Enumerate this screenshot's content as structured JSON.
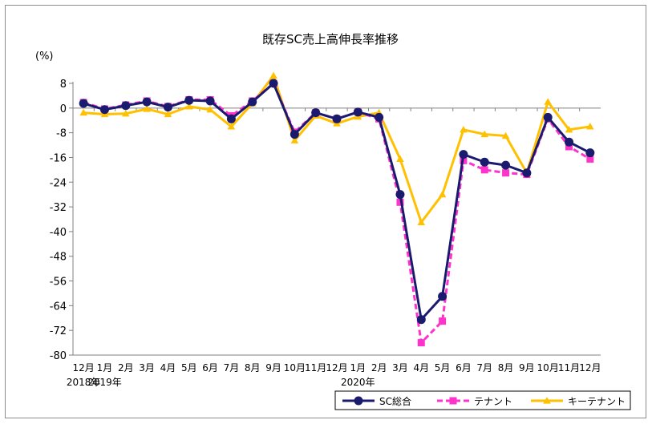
{
  "chart_data": {
    "type": "line",
    "title": "既存SC売上高伸長率推移",
    "ylabel": "(%)",
    "xlabel": "",
    "ylim": [
      -80,
      8
    ],
    "yticks": [
      8,
      0,
      -8,
      -16,
      -24,
      -32,
      -40,
      -48,
      -56,
      -64,
      -72,
      -80
    ],
    "grid": false,
    "legend_position": "bottom-right",
    "categories": [
      "12月",
      "1月",
      "2月",
      "3月",
      "4月",
      "5月",
      "6月",
      "7月",
      "8月",
      "9月",
      "10月",
      "11月",
      "12月",
      "1月",
      "2月",
      "3月",
      "4月",
      "5月",
      "6月",
      "7月",
      "8月",
      "9月",
      "10月",
      "11月",
      "12月"
    ],
    "year_labels": [
      {
        "index": 0,
        "text": "2018年"
      },
      {
        "index": 1,
        "text": "2019年"
      },
      {
        "index": 13,
        "text": "2020年"
      }
    ],
    "series": [
      {
        "name": "SC総合",
        "color": "#1a1a6e",
        "dash": false,
        "marker": "circle",
        "values": [
          1.5,
          -0.5,
          0.8,
          2.0,
          0.3,
          2.5,
          2.3,
          -3.5,
          2.0,
          8.0,
          -8.5,
          -1.5,
          -3.5,
          -1.3,
          -3.0,
          -28.0,
          -68.5,
          -61.0,
          -15.0,
          -17.5,
          -18.5,
          -21.0,
          -3.0,
          -11.0,
          -14.5
        ]
      },
      {
        "name": "テナント",
        "color": "#ff33cc",
        "dash": true,
        "marker": "square",
        "values": [
          1.8,
          -0.3,
          1.0,
          2.3,
          0.5,
          2.7,
          2.7,
          -2.5,
          2.3,
          8.0,
          -7.8,
          -1.5,
          -3.5,
          -1.3,
          -3.5,
          -30.5,
          -76.0,
          -69.0,
          -17.0,
          -20.0,
          -21.0,
          -21.5,
          -3.5,
          -12.5,
          -16.5
        ]
      },
      {
        "name": "キーテナント",
        "color": "#ffc000",
        "dash": false,
        "marker": "triangle",
        "values": [
          -1.5,
          -2.0,
          -1.8,
          -0.3,
          -2.0,
          0.5,
          -0.5,
          -6.0,
          1.5,
          10.5,
          -10.5,
          -2.5,
          -5.0,
          -2.8,
          -1.5,
          -16.5,
          -37.0,
          -28.0,
          -7.0,
          -8.5,
          -9.0,
          -21.0,
          2.0,
          -7.0,
          -6.0
        ]
      }
    ]
  }
}
